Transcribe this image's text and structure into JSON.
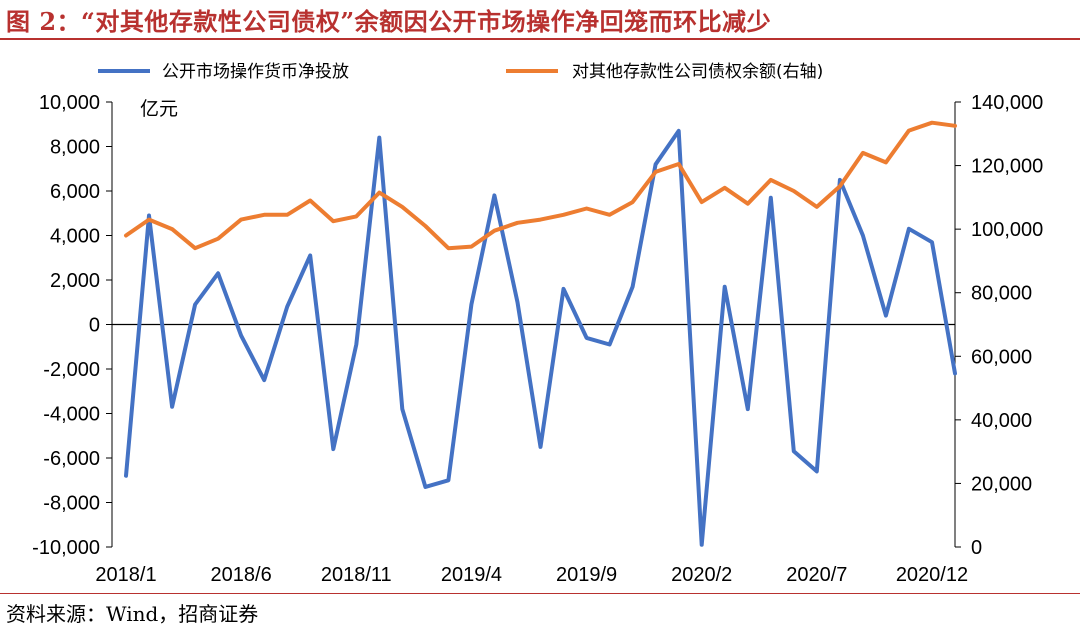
{
  "header": {
    "title": "图 2：“对其他存款性公司债权”余额因公开市场操作净回笼而环比减少"
  },
  "footer": {
    "source": "资料来源：Wind，招商证券"
  },
  "chart_data": {
    "type": "line",
    "unit_label": "亿元",
    "x": [
      "2018/1",
      "2018/2",
      "2018/3",
      "2018/4",
      "2018/5",
      "2018/6",
      "2018/7",
      "2018/8",
      "2018/9",
      "2018/10",
      "2018/11",
      "2018/12",
      "2019/1",
      "2019/2",
      "2019/3",
      "2019/4",
      "2019/5",
      "2019/6",
      "2019/7",
      "2019/8",
      "2019/9",
      "2019/10",
      "2019/11",
      "2019/12",
      "2020/1",
      "2020/2",
      "2020/3",
      "2020/4",
      "2020/5",
      "2020/6",
      "2020/7",
      "2020/8",
      "2020/9",
      "2020/10",
      "2020/11",
      "2020/12",
      "2021/1"
    ],
    "x_tick_labels": [
      "2018/1",
      "2018/6",
      "2018/11",
      "2019/4",
      "2019/9",
      "2020/2",
      "2020/7",
      "2020/12"
    ],
    "y_left": {
      "lim": [
        -10000,
        10000
      ],
      "ticks": [
        "-10,000",
        "-8,000",
        "-6,000",
        "-4,000",
        "-2,000",
        "0",
        "2,000",
        "4,000",
        "6,000",
        "8,000",
        "10,000"
      ]
    },
    "y_right": {
      "lim": [
        0,
        140000
      ],
      "ticks": [
        "0",
        "20,000",
        "40,000",
        "60,000",
        "80,000",
        "100,000",
        "120,000",
        "140,000"
      ]
    },
    "series": [
      {
        "name": "公开市场操作货币净投放",
        "axis": "left",
        "color": "#4472c4",
        "values": [
          -6800,
          4900,
          -3700,
          900,
          2300,
          -500,
          -2500,
          800,
          3100,
          -5600,
          -900,
          8400,
          -3800,
          -7300,
          -7000,
          900,
          5800,
          1000,
          -5500,
          1600,
          -600,
          -900,
          1700,
          7200,
          8700,
          -9900,
          1700,
          -3800,
          5700,
          -5700,
          -6600,
          6500,
          4000,
          400,
          4300,
          3700,
          -2200
        ]
      },
      {
        "name": "对其他存款性公司债权余额(右轴)",
        "axis": "right",
        "color": "#ed7d31",
        "values": [
          98000,
          103000,
          100000,
          94000,
          97000,
          103000,
          104500,
          104500,
          109000,
          102500,
          104000,
          111500,
          107000,
          101000,
          94000,
          94500,
          99500,
          102000,
          103000,
          104500,
          106500,
          104500,
          108500,
          118000,
          120500,
          108500,
          113000,
          108000,
          115500,
          112000,
          107000,
          113500,
          124000,
          121000,
          131000,
          133500,
          132500
        ]
      }
    ],
    "grid": false,
    "legend": "top"
  }
}
